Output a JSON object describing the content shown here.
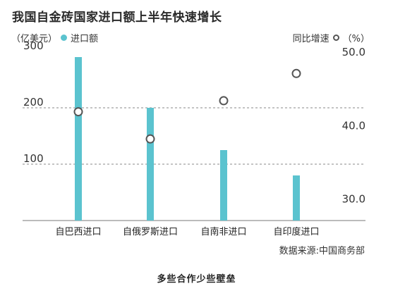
{
  "title": "我国自金砖国家进口额上半年快速增长",
  "legend": {
    "left_unit": "（亿美元）",
    "bar_label": "进口额",
    "right_label": "同比增速",
    "right_unit": "（%）"
  },
  "source": "数据来源:中国商务部",
  "footer": "多些合作少些壁垒",
  "colors": {
    "bar": "#5bc3cf",
    "marker": "#555555",
    "grid": "#888888",
    "axis": "#777777"
  },
  "chart_data": {
    "type": "bar",
    "categories": [
      "自巴西进口",
      "自俄罗斯进口",
      "自南非进口",
      "自印度进口"
    ],
    "series": [
      {
        "name": "进口额",
        "axis": "left",
        "values": [
          290,
          200,
          125,
          80
        ]
      },
      {
        "name": "同比增速",
        "axis": "right",
        "marker": "circle",
        "values": [
          41.8,
          38.1,
          43.3,
          47.0
        ]
      }
    ],
    "y_left": {
      "ticks": [
        100,
        200,
        300
      ],
      "range": [
        0,
        300
      ]
    },
    "y_right": {
      "ticks": [
        "30.0",
        "40.0",
        "50.0"
      ],
      "range": [
        27.0,
        50.0
      ]
    },
    "gridlines": [
      100,
      200
    ]
  }
}
